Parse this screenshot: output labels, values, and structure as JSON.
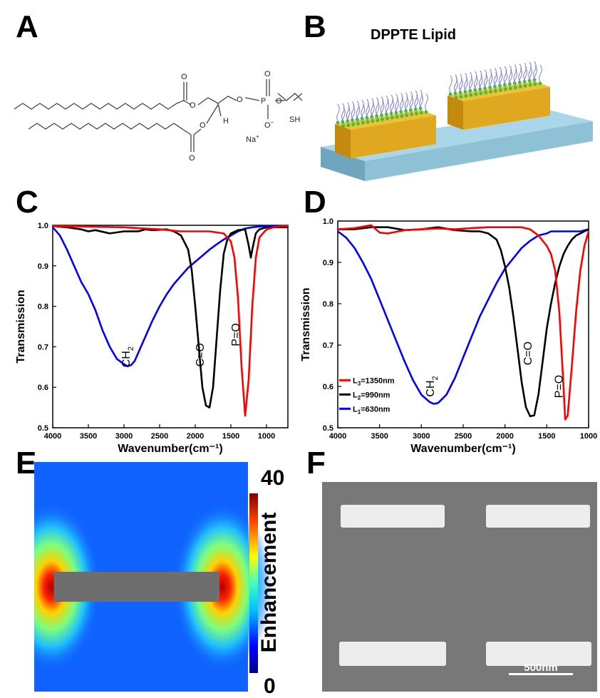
{
  "panels": {
    "a": "A",
    "b": "B",
    "c": "C",
    "d": "D",
    "e": "E",
    "f": "F"
  },
  "panel_a": {
    "atoms": {
      "o1": "O",
      "o2": "O",
      "o3": "O",
      "o4": "O",
      "o5": "O",
      "o6": "O",
      "o7": "O",
      "p": "P",
      "h": "H",
      "sh": "SH",
      "na": "Na",
      "na_sup": "+",
      "o_minus": "−"
    }
  },
  "panel_b": {
    "title": "DPPTE Lipid"
  },
  "panel_e": {
    "colorbar_label": "Enhancement",
    "colorbar_max": "40",
    "colorbar_min": "0"
  },
  "panel_f": {
    "scalebar_label": "500nm"
  },
  "chart_data": [
    {
      "id": "C",
      "type": "line",
      "xlabel": "Wavenumber(cm⁻¹)",
      "ylabel": "Transmission",
      "xlim": [
        4000,
        700
      ],
      "ylim": [
        0.5,
        1.0
      ],
      "xticks": [
        4000,
        3500,
        3000,
        2500,
        2000,
        1500,
        1000
      ],
      "yticks": [
        0.5,
        0.6,
        0.7,
        0.8,
        0.9,
        1.0
      ],
      "annotations": [
        {
          "text": "CH",
          "sub": "2",
          "x": 2920,
          "y": 0.675,
          "rotate": -90
        },
        {
          "text": "C=O",
          "x": 1880,
          "y": 0.68,
          "rotate": -90
        },
        {
          "text": "P=O",
          "x": 1380,
          "y": 0.73,
          "rotate": -90
        }
      ],
      "series": [
        {
          "color": "#0000ff",
          "x": [
            4000,
            3900,
            3800,
            3700,
            3600,
            3500,
            3400,
            3300,
            3200,
            3100,
            3000,
            2950,
            2900,
            2850,
            2800,
            2700,
            2600,
            2500,
            2400,
            2300,
            2200,
            2100,
            2000,
            1900,
            1800,
            1700,
            1600,
            1500,
            1400,
            1300,
            1200,
            1100,
            1000,
            900,
            800,
            700
          ],
          "y": [
            0.995,
            0.975,
            0.94,
            0.9,
            0.86,
            0.83,
            0.79,
            0.74,
            0.7,
            0.67,
            0.657,
            0.652,
            0.655,
            0.665,
            0.685,
            0.725,
            0.765,
            0.8,
            0.83,
            0.855,
            0.875,
            0.895,
            0.91,
            0.925,
            0.94,
            0.953,
            0.965,
            0.975,
            0.985,
            0.992,
            0.995,
            0.997,
            0.998,
            0.998,
            0.998,
            0.998
          ]
        },
        {
          "color": "#000000",
          "x": [
            4000,
            3800,
            3600,
            3500,
            3400,
            3200,
            3000,
            2800,
            2700,
            2600,
            2400,
            2300,
            2200,
            2100,
            2050,
            2000,
            1950,
            1900,
            1850,
            1800,
            1750,
            1700,
            1650,
            1600,
            1550,
            1500,
            1400,
            1300,
            1250,
            1220,
            1200,
            1150,
            1100,
            1000,
            900,
            800,
            700
          ],
          "y": [
            0.998,
            0.995,
            0.99,
            0.985,
            0.988,
            0.98,
            0.985,
            0.985,
            0.99,
            0.988,
            0.99,
            0.985,
            0.975,
            0.94,
            0.89,
            0.8,
            0.7,
            0.6,
            0.555,
            0.55,
            0.6,
            0.72,
            0.84,
            0.93,
            0.965,
            0.98,
            0.988,
            0.99,
            0.95,
            0.92,
            0.94,
            0.98,
            0.99,
            0.995,
            0.995,
            0.995,
            0.995
          ]
        },
        {
          "color": "#ff0000",
          "x": [
            4000,
            3500,
            3000,
            2500,
            2200,
            2000,
            1800,
            1600,
            1500,
            1450,
            1400,
            1350,
            1300,
            1250,
            1200,
            1150,
            1100,
            1000,
            900,
            800,
            700
          ],
          "y": [
            0.998,
            0.997,
            0.995,
            0.99,
            0.985,
            0.985,
            0.985,
            0.98,
            0.96,
            0.92,
            0.82,
            0.65,
            0.53,
            0.62,
            0.8,
            0.92,
            0.97,
            0.99,
            0.995,
            0.998,
            0.998
          ]
        }
      ]
    },
    {
      "id": "D",
      "type": "line",
      "xlabel": "Wavenumber(cm⁻¹)",
      "ylabel": "Transmission",
      "xlim": [
        4000,
        1000
      ],
      "ylim": [
        0.5,
        1.0
      ],
      "xticks": [
        4000,
        3500,
        3000,
        2500,
        2000,
        1500,
        1000
      ],
      "yticks": [
        0.5,
        0.6,
        0.7,
        0.8,
        0.9,
        1.0
      ],
      "annotations": [
        {
          "text": "CH",
          "sub": "2",
          "x": 2850,
          "y": 0.6,
          "rotate": -90
        },
        {
          "text": "C=O",
          "x": 1680,
          "y": 0.68,
          "rotate": -90
        },
        {
          "text": "P=O",
          "x": 1310,
          "y": 0.6,
          "rotate": -90
        }
      ],
      "legend": {
        "placement": "lower-left",
        "entries": [
          {
            "label": "L",
            "sub": "3",
            "rest": "=1350nm",
            "color": "#ff0000"
          },
          {
            "label": "L",
            "sub": "2",
            "rest": "=990nm",
            "color": "#000000"
          },
          {
            "label": "L",
            "sub": "1",
            "rest": "=630nm",
            "color": "#0000ff"
          }
        ]
      },
      "series": [
        {
          "color": "#0000ff",
          "x": [
            4000,
            3900,
            3800,
            3700,
            3600,
            3500,
            3400,
            3300,
            3200,
            3100,
            3000,
            2900,
            2850,
            2800,
            2700,
            2600,
            2500,
            2400,
            2300,
            2200,
            2100,
            2000,
            1900,
            1800,
            1700,
            1600,
            1500,
            1450,
            1400,
            1300,
            1200,
            1100,
            1000
          ],
          "y": [
            0.975,
            0.96,
            0.935,
            0.9,
            0.86,
            0.81,
            0.76,
            0.71,
            0.66,
            0.615,
            0.58,
            0.562,
            0.558,
            0.56,
            0.58,
            0.62,
            0.67,
            0.72,
            0.77,
            0.81,
            0.85,
            0.885,
            0.91,
            0.935,
            0.952,
            0.965,
            0.97,
            0.975,
            0.975,
            0.975,
            0.975,
            0.975,
            0.98
          ]
        },
        {
          "color": "#000000",
          "x": [
            4000,
            3800,
            3600,
            3400,
            3200,
            3000,
            2800,
            2600,
            2400,
            2300,
            2200,
            2100,
            2050,
            2000,
            1950,
            1900,
            1850,
            1800,
            1750,
            1700,
            1650,
            1600,
            1550,
            1500,
            1450,
            1400,
            1350,
            1300,
            1250,
            1200,
            1150,
            1100,
            1050,
            1000
          ],
          "y": [
            0.98,
            0.98,
            0.985,
            0.985,
            0.978,
            0.98,
            0.985,
            0.978,
            0.975,
            0.975,
            0.97,
            0.955,
            0.93,
            0.89,
            0.84,
            0.77,
            0.69,
            0.61,
            0.55,
            0.528,
            0.53,
            0.58,
            0.66,
            0.74,
            0.8,
            0.85,
            0.89,
            0.92,
            0.94,
            0.955,
            0.965,
            0.97,
            0.975,
            0.98
          ]
        },
        {
          "color": "#ff0000",
          "x": [
            4000,
            3800,
            3600,
            3500,
            3400,
            3200,
            3000,
            2800,
            2600,
            2400,
            2200,
            2000,
            1800,
            1700,
            1600,
            1500,
            1450,
            1400,
            1350,
            1300,
            1280,
            1250,
            1200,
            1150,
            1100,
            1050,
            1000
          ],
          "y": [
            0.98,
            0.983,
            0.99,
            0.972,
            0.97,
            0.978,
            0.98,
            0.982,
            0.98,
            0.983,
            0.985,
            0.985,
            0.985,
            0.98,
            0.965,
            0.94,
            0.92,
            0.88,
            0.78,
            0.6,
            0.52,
            0.53,
            0.65,
            0.78,
            0.88,
            0.94,
            0.975
          ]
        }
      ]
    }
  ]
}
